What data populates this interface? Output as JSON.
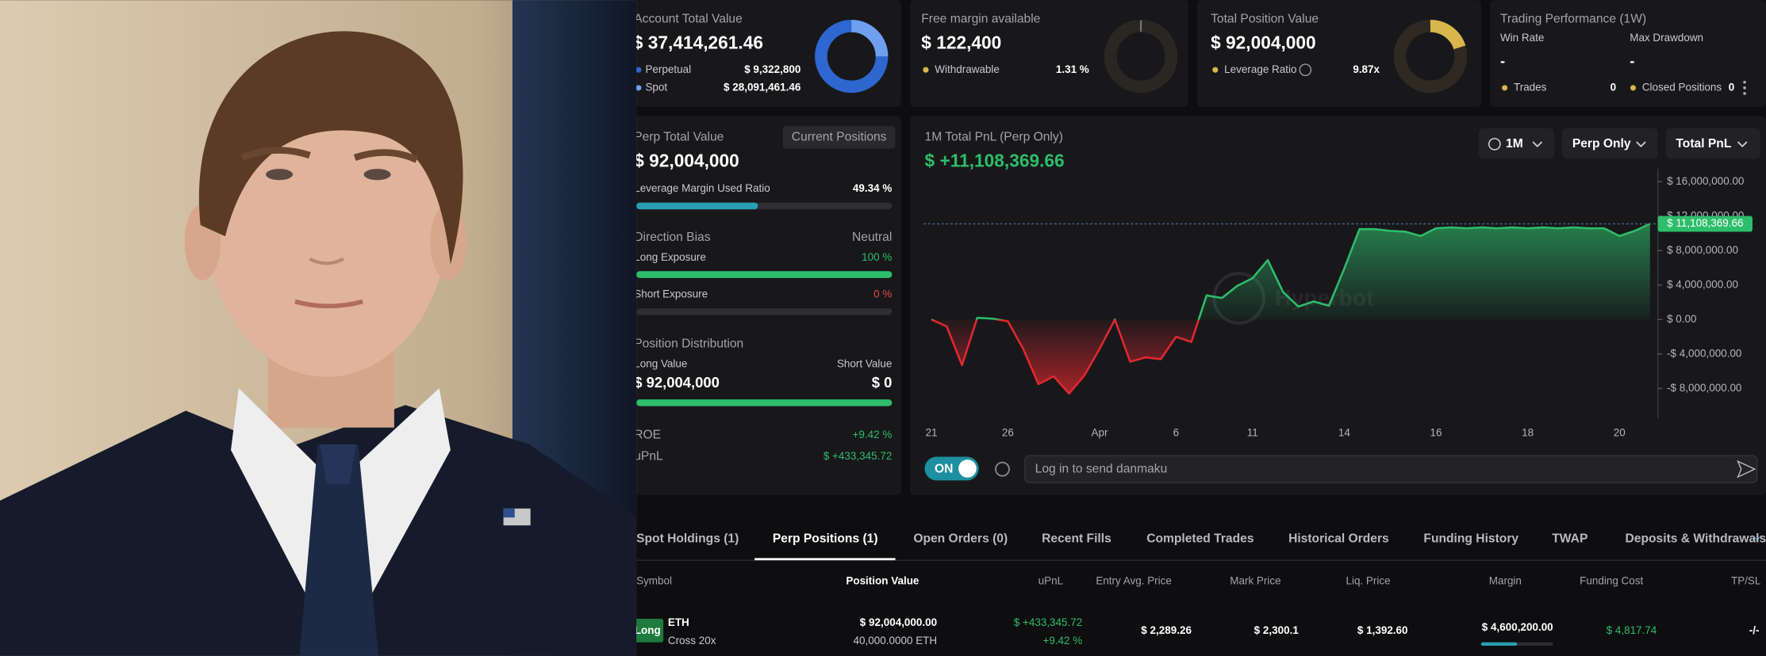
{
  "cards": {
    "account": {
      "title": "Account Total Value",
      "value": "$ 37,414,261.46",
      "perpetual": {
        "label": "Perpetual",
        "value": "$ 9,322,800"
      },
      "spot": {
        "label": "Spot",
        "value": "$ 28,091,461.46"
      }
    },
    "free_margin": {
      "title": "Free margin available",
      "value": "$ 122,400",
      "withdrawable": {
        "label": "Withdrawable",
        "value": "1.31 %"
      }
    },
    "position_value": {
      "title": "Total Position Value",
      "value": "$ 92,004,000",
      "leverage": {
        "label": "Leverage Ratio",
        "value": "9.87x"
      }
    },
    "performance": {
      "title": "Trading Performance (1W)",
      "win_rate": {
        "label": "Win Rate",
        "value": "-"
      },
      "max_drawdown": {
        "label": "Max Drawdown",
        "value": "-"
      },
      "trades": {
        "label": "Trades",
        "value": "0"
      },
      "closed": {
        "label": "Closed Positions",
        "value": "0"
      }
    }
  },
  "perp": {
    "title": "Perp Total Value",
    "button": "Current Positions",
    "value": "$ 92,004,000",
    "margin_ratio": {
      "label": "Leverage Margin Used Ratio",
      "value": "49.34 %"
    },
    "direction": {
      "label": "Direction Bias",
      "value": "Neutral"
    },
    "long_exposure": {
      "label": "Long Exposure",
      "value": "100 %"
    },
    "short_exposure": {
      "label": "Short Exposure",
      "value": "0 %"
    },
    "distribution": {
      "title": "Position Distribution",
      "long_label": "Long Value",
      "short_label": "Short Value",
      "long_value": "$ 92,004,000",
      "short_value": "$ 0"
    },
    "roe": {
      "label": "ROE",
      "value": "+9.42 %"
    },
    "upnl": {
      "label": "uPnL",
      "value": "$ +433,345.72"
    }
  },
  "pnl_panel": {
    "controls": [
      "1M",
      "Perp Only",
      "Total PnL"
    ],
    "toggle": "ON",
    "input_placeholder": "Log in to send danmaku"
  },
  "chart_data": {
    "type": "line",
    "title": "1M Total PnL (Perp Only)",
    "subtitle": "$ +11,108,369.66",
    "categories": [
      "21",
      null,
      null,
      null,
      null,
      "26",
      null,
      null,
      null,
      null,
      null,
      "Apr",
      null,
      null,
      null,
      null,
      "6",
      null,
      null,
      null,
      null,
      "11",
      null,
      null,
      null,
      null,
      null,
      "14",
      null,
      null,
      null,
      null,
      null,
      "16",
      null,
      null,
      null,
      null,
      null,
      "18",
      null,
      null,
      null,
      null,
      null,
      "20",
      null,
      null
    ],
    "values": [
      0,
      -800000,
      -5300000,
      200000,
      100000,
      -200000,
      -3400000,
      -7500000,
      -6600000,
      -8600000,
      -6500000,
      -3400000,
      0,
      -4900000,
      -4400000,
      -4600000,
      -2000000,
      -2600000,
      2800000,
      2500000,
      3900000,
      4800000,
      6900000,
      3200000,
      1500000,
      2100000,
      1600000,
      5900000,
      10500000,
      10500000,
      10300000,
      10200000,
      9700000,
      10600000,
      10700000,
      10600000,
      10700000,
      10600000,
      10700000,
      10600000,
      10700000,
      10600000,
      10700000,
      10600000,
      10600000,
      9700000,
      10300000,
      11108369.66
    ],
    "color": "#2ebd6b",
    "negative_color": "#e0282e",
    "current_label": "$ 11,108,369.66",
    "watermark": "Hyperbot",
    "ylim": [
      -11500000,
      17500000
    ],
    "yticks": [
      {
        "value": -8000000,
        "label": "-$ 8,000,000.00"
      },
      {
        "value": -4000000,
        "label": "-$ 4,000,000.00"
      },
      {
        "value": 0,
        "label": "$ 0.00"
      },
      {
        "value": 4000000,
        "label": "$ 4,000,000.00"
      },
      {
        "value": 8000000,
        "label": "$ 8,000,000.00"
      },
      {
        "value": 12000000,
        "label": "$ 12,000,000.00"
      },
      {
        "value": 16000000,
        "label": "$ 16,000,000.00"
      }
    ],
    "grid": false
  },
  "tabs": {
    "items": [
      "Spot Holdings (1)",
      "Perp Positions (1)",
      "Open Orders (0)",
      "Recent Fills",
      "Completed Trades",
      "Historical Orders",
      "Funding History",
      "TWAP",
      "Deposits & Withdrawals"
    ],
    "active": 1
  },
  "table": {
    "columns": [
      "Symbol",
      "Position Value",
      "uPnL",
      "Entry Avg. Price",
      "Mark Price",
      "Liq. Price",
      "Margin",
      "Funding Cost",
      "TP/SL"
    ],
    "rows": [
      {
        "side": "Long",
        "symbol": "ETH",
        "mode": "Cross 20x",
        "position_value": "$ 92,004,000.00",
        "size": "40,000.0000 ETH",
        "upnl": "$ +433,345.72",
        "upnl_pct": "+9.42 %",
        "entry": "$ 2,289.26",
        "mark": "$ 2,300.1",
        "liq": "$ 1,392.60",
        "margin": "$ 4,600,200.00",
        "funding": "$ 4,817.74",
        "tpsl": "-/-"
      }
    ]
  }
}
